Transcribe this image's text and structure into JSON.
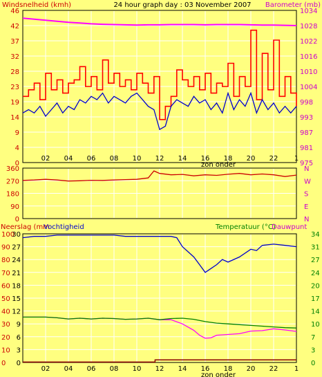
{
  "header": {
    "left_label": "Windsnelheid (kmh)",
    "title": "24 hour graph day : 03 November 2007",
    "right_label": "Barometer (mb)"
  },
  "colors": {
    "background": "#ffff80",
    "grid": "#ffffff",
    "wind": "#ff0000",
    "wind_low": "#0000cc",
    "barometer": "#ff00ff",
    "direction": "#cc0000",
    "humidity": "#0000cc",
    "temperature": "#008000",
    "dewpoint": "#ff00ff",
    "rain": "#8b0000",
    "left_axis_text": "#cc0000",
    "right_axis_text": "#cc00cc",
    "temp_axis_text": "#008000"
  },
  "panels": {
    "wind": {
      "x_marker": "zon onder"
    },
    "direction": {},
    "bottom": {
      "left_label_1": "Neerslag (mm",
      "left_label_2": "Vochtigheid",
      "right_label_1": "Temperatuur (°C)",
      "right_label_2": "Dauwpunt",
      "x_marker": "zon onder"
    }
  },
  "chart_data": [
    {
      "type": "line",
      "title": "24 hour graph day : 03 November 2007",
      "ylabel": "Windsnelheid (kmh)",
      "ylabel_right": "Barometer (mb)",
      "xlim": [
        0,
        24
      ],
      "ylim": [
        0,
        46
      ],
      "ylim_right": [
        975,
        1034
      ],
      "x_ticks": [
        "02",
        "04",
        "06",
        "08",
        "10",
        "12",
        "14",
        "16",
        "18",
        "20",
        "22",
        "1"
      ],
      "y_ticks": [
        "0",
        "4",
        "9",
        "14",
        "19",
        "23",
        "28",
        "32",
        "37",
        "42",
        "46"
      ],
      "y_ticks_right": [
        "975",
        "981",
        "987",
        "993",
        "998",
        "1004",
        "1010",
        "1016",
        "1022",
        "1028",
        "1034"
      ],
      "grid": true,
      "series": [
        {
          "axis": "left",
          "x": [
            0,
            0.5,
            1,
            1.5,
            2,
            2.5,
            3,
            3.5,
            4,
            4.5,
            5,
            5.5,
            6,
            6.5,
            7,
            7.5,
            8,
            8.5,
            9,
            9.5,
            10,
            10.5,
            11,
            11.5,
            12,
            12.5,
            13,
            13.5,
            14,
            14.5,
            15,
            15.5,
            16,
            16.5,
            17,
            17.5,
            18,
            18.5,
            19,
            19.5,
            20,
            20.5,
            21,
            21.5,
            22,
            22.5,
            23,
            23.5,
            24
          ],
          "values": [
            20,
            22,
            24,
            19,
            27,
            22,
            25,
            21,
            24,
            25,
            29,
            23,
            26,
            22,
            31,
            24,
            27,
            23,
            25,
            22,
            27,
            24,
            21,
            26,
            13,
            17,
            20,
            28,
            25,
            23,
            26,
            22,
            27,
            21,
            24,
            23,
            30,
            20,
            26,
            23,
            40,
            19,
            33,
            22,
            37,
            20,
            26,
            21,
            17
          ]
        },
        {
          "axis": "left",
          "x": [
            0,
            0.5,
            1,
            1.5,
            2,
            2.5,
            3,
            3.5,
            4,
            4.5,
            5,
            5.5,
            6,
            6.5,
            7,
            7.5,
            8,
            8.5,
            9,
            9.5,
            10,
            10.5,
            11,
            11.5,
            12,
            12.5,
            13,
            13.5,
            14,
            14.5,
            15,
            15.5,
            16,
            16.5,
            17,
            17.5,
            18,
            18.5,
            19,
            19.5,
            20,
            20.5,
            21,
            21.5,
            22,
            22.5,
            23,
            23.5,
            24
          ],
          "values": [
            15,
            16,
            15,
            17,
            14,
            16,
            18,
            15,
            17,
            16,
            19,
            18,
            20,
            19,
            21,
            18,
            20,
            19,
            18,
            20,
            21,
            19,
            17,
            16,
            10,
            11,
            17,
            19,
            18,
            17,
            20,
            18,
            19,
            16,
            18,
            15,
            21,
            16,
            19,
            17,
            21,
            15,
            19,
            16,
            18,
            15,
            17,
            15,
            17
          ]
        },
        {
          "axis": "right",
          "x": [
            0,
            1,
            2,
            3,
            4,
            5,
            6,
            7,
            8,
            9,
            10,
            11,
            12,
            13,
            14,
            15,
            16,
            17,
            18,
            19,
            20,
            21,
            22,
            23,
            24
          ],
          "values": [
            1031,
            1030.6,
            1030.2,
            1029.8,
            1029.4,
            1029.1,
            1028.8,
            1028.6,
            1028.5,
            1028.4,
            1028.3,
            1028.4,
            1028.4,
            1028.5,
            1028.5,
            1028.5,
            1028.4,
            1028.5,
            1028.5,
            1028.5,
            1028.4,
            1028.3,
            1028.3,
            1028.2,
            1028.1
          ]
        }
      ]
    },
    {
      "type": "line",
      "xlim": [
        0,
        24
      ],
      "ylim": [
        0,
        360
      ],
      "y_ticks": [
        "0",
        "90",
        "180",
        "270",
        "360"
      ],
      "y_ticks_right": [
        "N",
        "E",
        "S",
        "W",
        "N"
      ],
      "grid": true,
      "series": [
        {
          "x": [
            0,
            1,
            2,
            3,
            4,
            5,
            6,
            7,
            8,
            9,
            10,
            11,
            11.5,
            12,
            13,
            14,
            15,
            16,
            17,
            18,
            19,
            20,
            21,
            22,
            23,
            24
          ],
          "values": [
            272,
            275,
            280,
            275,
            268,
            270,
            273,
            272,
            275,
            278,
            280,
            290,
            340,
            322,
            312,
            315,
            305,
            312,
            308,
            316,
            322,
            312,
            318,
            312,
            300,
            310
          ]
        }
      ]
    },
    {
      "type": "line",
      "xlim": [
        0,
        24
      ],
      "ylim": [
        0,
        100
      ],
      "ylim_right": [
        0,
        34
      ],
      "x_ticks": [
        "02",
        "04",
        "06",
        "08",
        "10",
        "12",
        "14",
        "16",
        "18",
        "20",
        "22",
        "1"
      ],
      "y_ticks": [
        "0",
        "10",
        "20",
        "30",
        "40",
        "50",
        "60",
        "70",
        "80",
        "90",
        "100"
      ],
      "y_ticks_left_inner": [
        "0",
        "3",
        "6",
        "9",
        "12",
        "15",
        "18",
        "21",
        "24",
        "27",
        "30"
      ],
      "y_ticks_right": [
        "0",
        "3",
        "7",
        "10",
        "14",
        "17",
        "20",
        "24",
        "27",
        "31",
        "34"
      ],
      "grid": true,
      "series": [
        {
          "name": "Vochtigheid",
          "axis": "left",
          "x": [
            0,
            1,
            2,
            3,
            4,
            5,
            6,
            7,
            8,
            9,
            10,
            11,
            12,
            13,
            13.5,
            14,
            15,
            15.5,
            16,
            16.5,
            17,
            17.5,
            18,
            19,
            20,
            20.5,
            21,
            22,
            23,
            24
          ],
          "values": [
            97,
            98,
            98,
            99,
            99,
            99,
            99,
            99,
            99,
            98,
            98,
            98,
            98,
            98,
            97,
            90,
            82,
            76,
            70,
            73,
            76,
            80,
            78,
            82,
            88,
            87,
            91,
            92,
            91,
            90
          ]
        },
        {
          "name": "Temperatuur (°C)",
          "axis": "right",
          "x": [
            0,
            1,
            2,
            3,
            4,
            5,
            6,
            7,
            8,
            9,
            10,
            11,
            12,
            13,
            14,
            15,
            16,
            17,
            18,
            19,
            20,
            21,
            22,
            23,
            24
          ],
          "values": [
            12,
            12,
            12,
            11.8,
            11.5,
            11.7,
            11.5,
            11.7,
            11.6,
            11.4,
            11.5,
            11.7,
            11.3,
            11.6,
            11.7,
            11.4,
            10.8,
            10.4,
            10.2,
            10,
            9.8,
            9.6,
            9.4,
            9.2,
            9.1
          ]
        },
        {
          "name": "Dauwpunt",
          "axis": "right",
          "x": [
            0,
            1,
            2,
            3,
            4,
            5,
            6,
            7,
            8,
            9,
            10,
            11,
            12,
            13,
            14,
            15,
            15.5,
            16,
            16.5,
            17,
            18,
            19,
            20,
            21,
            22,
            23,
            24
          ],
          "values": [
            12,
            12,
            12,
            11.8,
            11.5,
            11.7,
            11.5,
            11.7,
            11.6,
            11.4,
            11.5,
            11.7,
            11.3,
            11.3,
            10.2,
            8.5,
            7.2,
            6.4,
            6.5,
            7.2,
            7.4,
            7.6,
            8.3,
            8.4,
            8.9,
            8.6,
            8.2
          ]
        },
        {
          "name": "Neerslag (mm",
          "axis": "left_inner",
          "x": [
            0,
            10,
            11.4,
            11.6,
            24
          ],
          "values": [
            0.1,
            0.1,
            0.1,
            0.6,
            0.6
          ]
        }
      ]
    }
  ]
}
